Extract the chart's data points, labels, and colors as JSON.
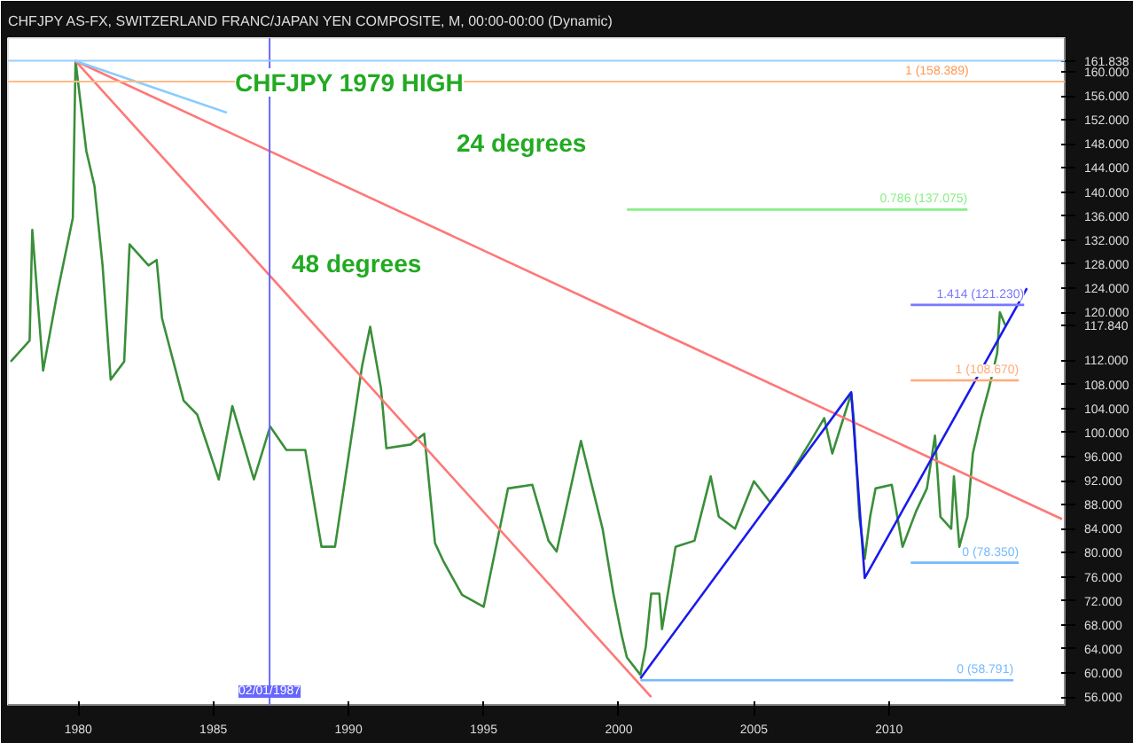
{
  "chart_data": {
    "type": "line",
    "title": "CHFJPY AS-FX, SWITZERLAND FRANC/JAPAN YEN COMPOSITE, M, 00:00-00:00 (Dynamic)",
    "xlim": [
      1977.4,
      2016.5
    ],
    "ylim": [
      54.7,
      165.6
    ],
    "xticks": [
      1980,
      1985,
      1990,
      1995,
      2000,
      2005,
      2010
    ],
    "yticks": [
      {
        "value": 56,
        "label": "56.000"
      },
      {
        "value": 60,
        "label": "60.000"
      },
      {
        "value": 64,
        "label": "64.000"
      },
      {
        "value": 68,
        "label": "68.000"
      },
      {
        "value": 72,
        "label": "72.000"
      },
      {
        "value": 76,
        "label": "76.000"
      },
      {
        "value": 80,
        "label": "80.000"
      },
      {
        "value": 84,
        "label": "84.000"
      },
      {
        "value": 88,
        "label": "88.000"
      },
      {
        "value": 92,
        "label": "92.000"
      },
      {
        "value": 96,
        "label": "96.000"
      },
      {
        "value": 100,
        "label": "100.000"
      },
      {
        "value": 104,
        "label": "104.000"
      },
      {
        "value": 108,
        "label": "108.000"
      },
      {
        "value": 112,
        "label": "112.000"
      },
      {
        "value": 117.84,
        "label": "117.840"
      },
      {
        "value": 120,
        "label": "120.000"
      },
      {
        "value": 124,
        "label": "124.000"
      },
      {
        "value": 128,
        "label": "128.000"
      },
      {
        "value": 132,
        "label": "132.000"
      },
      {
        "value": 136,
        "label": "136.000"
      },
      {
        "value": 140,
        "label": "140.000"
      },
      {
        "value": 144,
        "label": "144.000"
      },
      {
        "value": 148,
        "label": "148.000"
      },
      {
        "value": 152,
        "label": "152.000"
      },
      {
        "value": 156,
        "label": "156.000"
      },
      {
        "value": 160,
        "label": "160.000"
      },
      {
        "value": 161.838,
        "label": "161.838"
      }
    ],
    "grid": false,
    "line_style": "solid",
    "series": [
      {
        "color": "#3a8f3a",
        "x": [
          1977.5,
          1978.2,
          1978.3,
          1978.7,
          1979.2,
          1979.8,
          1979.9,
          1980.3,
          1980.6,
          1980.9,
          1981.2,
          1981.7,
          1981.9,
          1982.6,
          1982.9,
          1983.1,
          1983.9,
          1984.4,
          1985.2,
          1985.7,
          1986.5,
          1987.1,
          1987.7,
          1988.4,
          1989.0,
          1989.5,
          1990.5,
          1990.8,
          1991.2,
          1991.4,
          1992.3,
          1992.8,
          1993.2,
          1993.5,
          1994.2,
          1995.0,
          1995.9,
          1996.8,
          1997.4,
          1997.7,
          1998.6,
          1999.4,
          1999.8,
          2000.1,
          2000.3,
          2000.8,
          2001.0,
          2001.2,
          2001.5,
          2001.6,
          2002.1,
          2002.8,
          2003.4,
          2003.7,
          2004.3,
          2005.0,
          2005.6,
          2006.3,
          2007.1,
          2007.6,
          2007.9,
          2008.6,
          2008.7,
          2008.9,
          2009.1,
          2009.3,
          2009.5,
          2010.1,
          2010.5,
          2011.0,
          2011.4,
          2011.7,
          2011.9,
          2012.3,
          2012.4,
          2012.6,
          2012.9,
          2013.1,
          2013.4,
          2013.7,
          2014.0,
          2014.1,
          2014.3
        ],
        "values": [
          111.8,
          115.3,
          133.7,
          110.3,
          122.6,
          135.7,
          161.8,
          146.8,
          141,
          127.8,
          108.8,
          111.8,
          131.3,
          127.8,
          128.7,
          119,
          105.3,
          103,
          92.2,
          104.4,
          92.2,
          101,
          97.1,
          97.1,
          81,
          81,
          111,
          117.6,
          107.4,
          97.4,
          98,
          99.8,
          81.6,
          78.7,
          73,
          71,
          90.7,
          91.3,
          82,
          80.2,
          98.6,
          84,
          73.2,
          66.4,
          62.6,
          59.7,
          64.4,
          73.2,
          73.2,
          67.3,
          81,
          82,
          92.7,
          86,
          84,
          91.9,
          88.4,
          92.7,
          98.6,
          102.4,
          96.5,
          106.5,
          102,
          86,
          79,
          86,
          90.7,
          91.3,
          81,
          86.9,
          90.7,
          99.5,
          86,
          84,
          92.7,
          81,
          86,
          96.5,
          102.4,
          107.4,
          113.2,
          120,
          117.84
        ]
      },
      {
        "type": "line",
        "color": "#ff7777",
        "x": [
          1979.9,
          2001.2
        ],
        "values": [
          161.8,
          56
        ]
      },
      {
        "type": "line",
        "color": "#ff7777",
        "x": [
          1979.9,
          2016.4
        ],
        "values": [
          161.8,
          85.6
        ]
      },
      {
        "type": "line",
        "color": "#88ccff",
        "x": [
          1979.9,
          1985.5
        ],
        "values": [
          161.8,
          153.2
        ]
      },
      {
        "type": "line",
        "color": "#1a1aee",
        "x": [
          2000.8,
          2008.6,
          2009.1,
          2015.1
        ],
        "values": [
          59.1,
          106.7,
          75.8,
          124.0
        ]
      },
      {
        "type": "line",
        "color": "#88ee88",
        "name": "0.786 (137.075)",
        "x": [
          2000.3,
          2012.9
        ],
        "values": [
          137.075,
          137.075
        ]
      },
      {
        "type": "line",
        "color": "#7777ff",
        "name": "1.414 (121.230)",
        "x": [
          2010.8,
          2015.0
        ],
        "values": [
          121.23,
          121.23
        ]
      },
      {
        "type": "line",
        "color": "#ffaa77",
        "name": "1 (108.670)",
        "x": [
          2010.8,
          2014.8
        ],
        "values": [
          108.67,
          108.67
        ]
      },
      {
        "type": "line",
        "color": "#77bbff",
        "name": "0 (78.350)",
        "x": [
          2010.8,
          2014.8
        ],
        "values": [
          78.35,
          78.35
        ]
      },
      {
        "type": "line",
        "color": "#77bbff",
        "name": "0 (58.791)",
        "x": [
          2000.8,
          2014.6
        ],
        "values": [
          58.791,
          58.791
        ]
      }
    ],
    "ref_lines": [
      {
        "axis": "x",
        "value": 1987.08,
        "label": "02/01/1987",
        "color": "#6666ff"
      },
      {
        "axis": "y",
        "value": 161.838,
        "color": "#99ccff"
      },
      {
        "axis": "y",
        "value": 158.389,
        "label": "1 (158.389)",
        "color": "#ffbb88"
      }
    ],
    "annotations": [
      "CHFJPY 1979 HIGH",
      "24 degrees",
      "48 degrees"
    ]
  }
}
